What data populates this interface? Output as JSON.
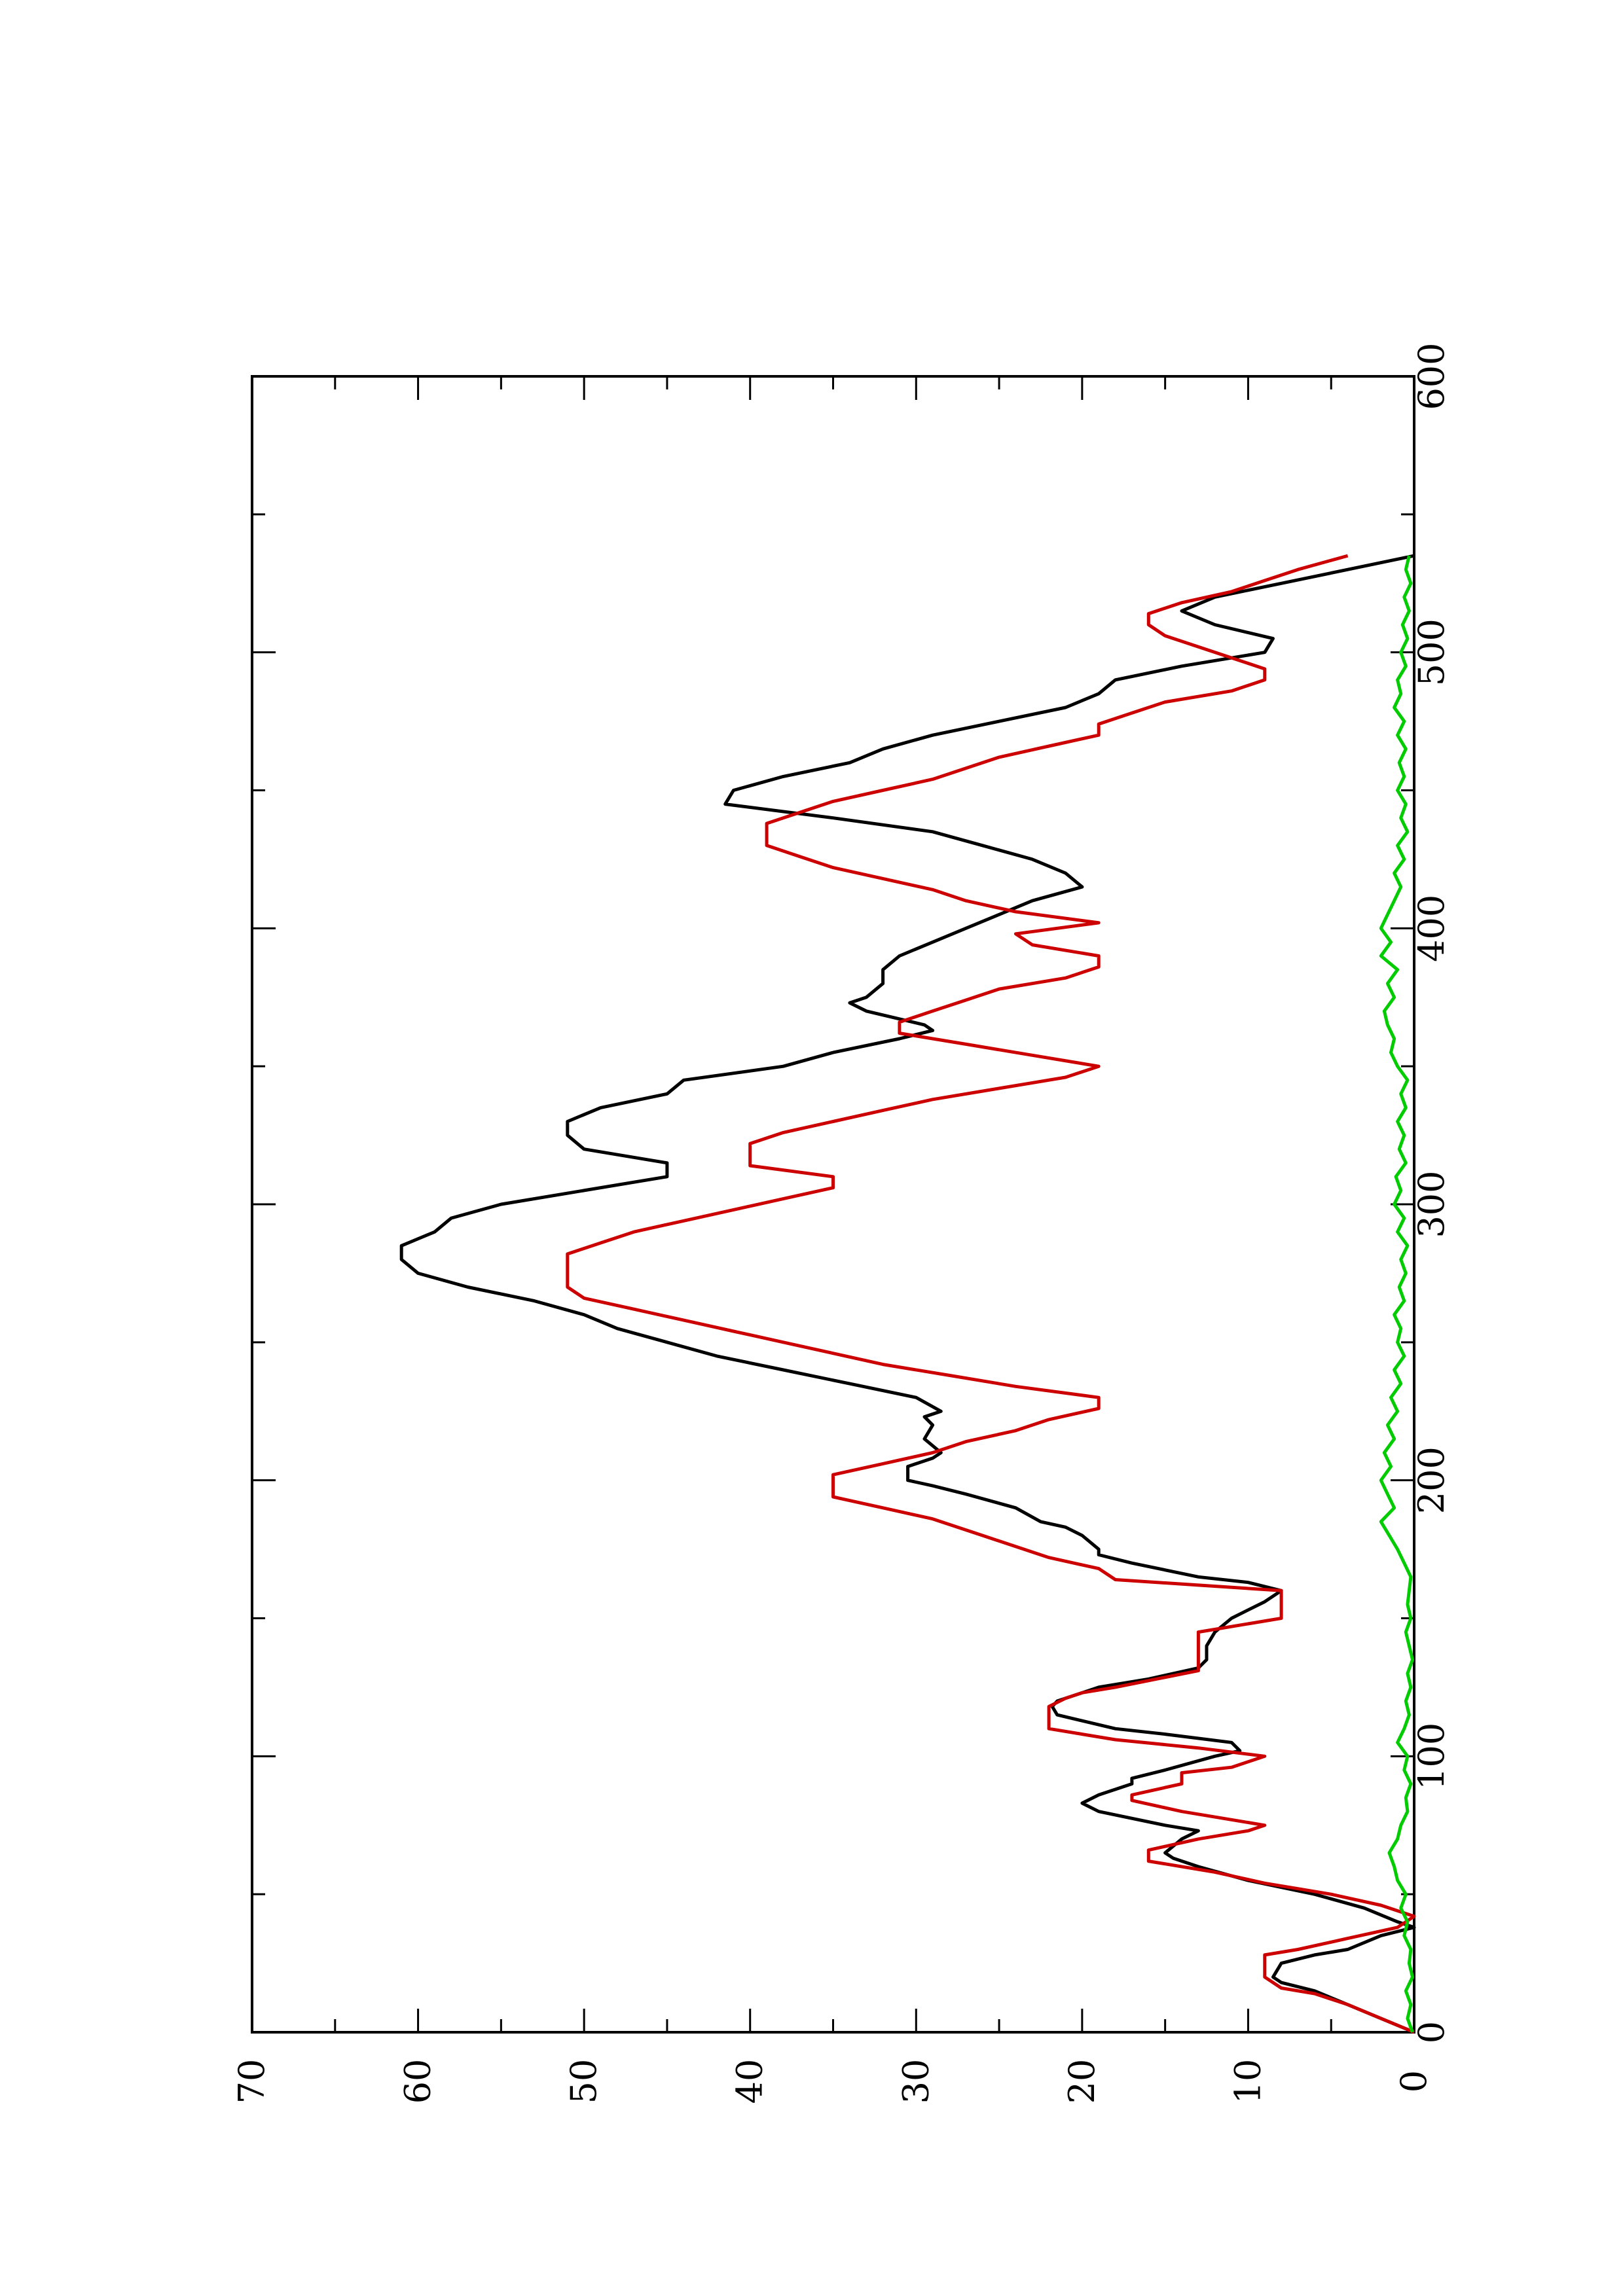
{
  "chart_data": {
    "type": "line",
    "title": "",
    "xlabel": "",
    "ylabel": "",
    "xlim": [
      0,
      600
    ],
    "ylim": [
      0,
      70
    ],
    "xticks": [
      0,
      100,
      200,
      300,
      400,
      500,
      600
    ],
    "yticks": [
      0,
      10,
      20,
      30,
      40,
      50,
      60,
      70
    ],
    "grid": false,
    "legend": "none",
    "orientation": "rotated 90 degrees counter-clockwise",
    "series": [
      {
        "color": "#000000",
        "x": [
          0,
          5,
          10,
          15,
          18,
          20,
          25,
          28,
          30,
          35,
          38,
          40,
          45,
          50,
          55,
          60,
          63,
          65,
          70,
          73,
          75,
          80,
          83,
          86,
          90,
          92,
          95,
          100,
          102,
          105,
          108,
          110,
          115,
          118,
          120,
          125,
          128,
          132,
          135,
          140,
          145,
          150,
          153,
          156,
          160,
          163,
          165,
          170,
          173,
          175,
          180,
          183,
          185,
          190,
          195,
          198,
          200,
          205,
          208,
          210,
          215,
          220,
          223,
          225,
          230,
          235,
          240,
          245,
          250,
          255,
          260,
          265,
          270,
          275,
          280,
          285,
          290,
          295,
          300,
          305,
          310,
          315,
          320,
          325,
          330,
          335,
          340,
          345,
          350,
          355,
          360,
          363,
          365,
          370,
          373,
          375,
          380,
          385,
          390,
          395,
          400,
          405,
          410,
          415,
          420,
          425,
          430,
          435,
          440,
          445,
          450,
          455,
          460,
          465,
          470,
          475,
          480,
          485,
          490,
          495,
          500,
          505,
          510,
          515,
          520,
          525,
          530,
          535
        ],
        "values": [
          0,
          2,
          4,
          6,
          8,
          8.5,
          8,
          6,
          4,
          2,
          0,
          1,
          3,
          6,
          10,
          13,
          14.5,
          15,
          14,
          13,
          15,
          19,
          20,
          19,
          17,
          17,
          15,
          12,
          10.5,
          11,
          15,
          18,
          21.5,
          21.8,
          21.5,
          19,
          16,
          13,
          12.5,
          12.5,
          12,
          11,
          10,
          9,
          8,
          10,
          13,
          17,
          19,
          19,
          20,
          21,
          22.5,
          24,
          27,
          29,
          30.5,
          30.5,
          29,
          28.5,
          29.5,
          29,
          29.5,
          28.5,
          30,
          34,
          38,
          42,
          45,
          48,
          50,
          53,
          57,
          60,
          61,
          61,
          59,
          58,
          55,
          50,
          45,
          45,
          50,
          51,
          51,
          49,
          45,
          44,
          38,
          35,
          31,
          29,
          29.5,
          33,
          34,
          33,
          32,
          32,
          31,
          29,
          27,
          25,
          23,
          20,
          21,
          23,
          26,
          29,
          35,
          41.5,
          41,
          38,
          34,
          32,
          29,
          25,
          21,
          19,
          18,
          14,
          9,
          8.5,
          12,
          14,
          12,
          8,
          4,
          0
        ]
      },
      {
        "color": "#cc0000",
        "x": [
          0,
          5,
          10,
          14,
          16,
          20,
          28,
          30,
          34,
          38,
          42,
          46,
          50,
          52,
          54,
          58,
          62,
          66,
          70,
          73,
          75,
          80,
          84,
          86,
          90,
          94,
          96,
          100,
          103,
          106,
          110,
          116,
          118,
          121,
          123,
          125,
          131,
          133,
          137,
          141,
          145,
          150,
          155,
          158,
          160,
          162,
          164,
          168,
          172,
          176,
          180,
          186,
          190,
          194,
          198,
          202,
          206,
          210,
          214,
          218,
          222,
          226,
          230,
          234,
          238,
          242,
          246,
          250,
          254,
          258,
          262,
          266,
          270,
          274,
          278,
          282,
          286,
          290,
          294,
          298,
          302,
          306,
          310,
          314,
          318,
          322,
          326,
          330,
          334,
          338,
          342,
          346,
          350,
          354,
          358,
          362,
          366,
          370,
          374,
          378,
          382,
          386,
          390,
          394,
          398,
          402,
          406,
          410,
          414,
          418,
          422,
          426,
          430,
          434,
          438,
          442,
          446,
          450,
          454,
          458,
          462,
          466,
          470,
          474,
          478,
          482,
          486,
          490,
          494,
          498,
          502,
          506,
          510,
          514,
          518,
          522,
          526,
          530,
          535
        ],
        "values": [
          0,
          2,
          4,
          6,
          8,
          9,
          9,
          7,
          4,
          1,
          0,
          2,
          5,
          7,
          9,
          12,
          16,
          16,
          13,
          10,
          9,
          14,
          17,
          17,
          14,
          14,
          11,
          9,
          13,
          18,
          22,
          22,
          22,
          21,
          20,
          18,
          13,
          13,
          13,
          13,
          13,
          8,
          8,
          8,
          8,
          13,
          18,
          19,
          22,
          24,
          26,
          29,
          32,
          35,
          35,
          35,
          32,
          29,
          27,
          24,
          22,
          19,
          19,
          24,
          28,
          32,
          35,
          38,
          41,
          44,
          47,
          50,
          51,
          51,
          51,
          51,
          49,
          47,
          44,
          41,
          38,
          35,
          35,
          40,
          40,
          40,
          38,
          35,
          32,
          29,
          25,
          21,
          19,
          23,
          27,
          31,
          31,
          29,
          27,
          25,
          21,
          19,
          19,
          23,
          24,
          19,
          24,
          27,
          29,
          32,
          35,
          37,
          39,
          39,
          39,
          37,
          35,
          32,
          29,
          27,
          25,
          22,
          19,
          19,
          17,
          15,
          11,
          9,
          9,
          11,
          13,
          15,
          16,
          16,
          14,
          11,
          9,
          7,
          4
        ]
      },
      {
        "color": "#00cc00",
        "x": [
          0,
          5,
          10,
          15,
          20,
          25,
          30,
          35,
          40,
          45,
          50,
          55,
          60,
          65,
          70,
          75,
          80,
          85,
          90,
          95,
          100,
          105,
          110,
          115,
          120,
          125,
          130,
          135,
          140,
          145,
          150,
          155,
          160,
          165,
          170,
          175,
          180,
          185,
          190,
          195,
          200,
          205,
          210,
          215,
          220,
          225,
          230,
          235,
          240,
          245,
          250,
          255,
          260,
          265,
          270,
          275,
          280,
          285,
          290,
          295,
          300,
          305,
          310,
          315,
          320,
          325,
          330,
          335,
          340,
          345,
          350,
          355,
          360,
          365,
          370,
          375,
          380,
          385,
          390,
          395,
          400,
          405,
          410,
          415,
          420,
          425,
          430,
          435,
          440,
          445,
          450,
          455,
          460,
          465,
          470,
          475,
          480,
          485,
          490,
          495,
          500,
          505,
          510,
          515,
          520,
          525,
          530,
          535
        ],
        "values": [
          0.1,
          0.4,
          0.2,
          0.5,
          0.1,
          0.3,
          0.2,
          0.6,
          0.4,
          0.8,
          0.5,
          1.0,
          1.2,
          1.5,
          1.0,
          0.8,
          0.4,
          0.5,
          0.2,
          0.6,
          0.4,
          1.0,
          0.6,
          0.3,
          0.5,
          0.2,
          0.4,
          0.1,
          0.3,
          0.5,
          0.2,
          0.4,
          0.3,
          0.2,
          0.6,
          1.0,
          1.5,
          2.0,
          1.2,
          1.6,
          2.0,
          1.4,
          1.8,
          1.2,
          1.6,
          1.0,
          1.4,
          0.8,
          1.2,
          0.6,
          1.0,
          0.8,
          1.2,
          0.6,
          0.9,
          0.5,
          0.8,
          0.4,
          1.0,
          0.6,
          1.2,
          0.8,
          1.1,
          0.5,
          0.9,
          0.6,
          1.0,
          0.5,
          0.8,
          0.4,
          1.0,
          1.4,
          1.2,
          1.6,
          1.8,
          1.2,
          1.6,
          1.0,
          2.0,
          1.4,
          2.0,
          1.6,
          1.2,
          0.8,
          1.2,
          0.6,
          1.0,
          0.4,
          0.8,
          0.5,
          1.0,
          0.6,
          0.9,
          0.5,
          1.0,
          0.6,
          1.2,
          0.8,
          1.0,
          0.5,
          0.8,
          0.4,
          0.7,
          0.3,
          0.6,
          0.2,
          0.5,
          0.3
        ]
      }
    ]
  }
}
